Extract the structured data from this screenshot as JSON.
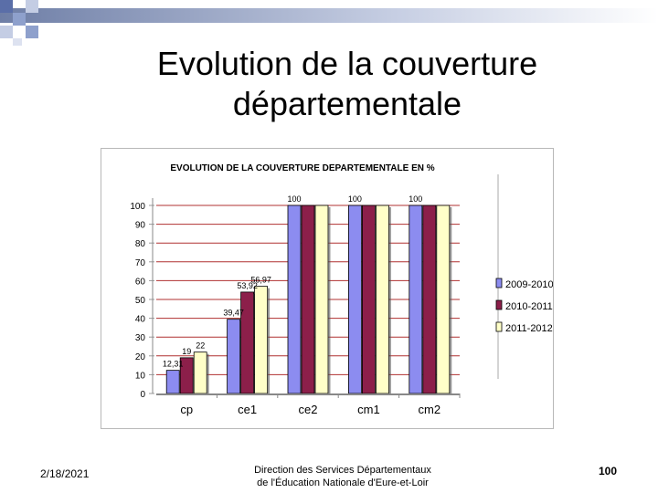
{
  "slide": {
    "title": "Evolution de la couverture départementale",
    "date": "2/18/2021",
    "organization_line1": "Direction des Services Départementaux",
    "organization_line2": "de l'Éducation Nationale d'Eure-et-Loir",
    "page_number": "100"
  },
  "chart_data": {
    "type": "bar",
    "title": "EVOLUTION DE LA COUVERTURE DEPARTEMENTALE EN %",
    "categories": [
      "cp",
      "ce1",
      "ce2",
      "cm1",
      "cm2"
    ],
    "series": [
      {
        "name": "2009-2010",
        "values": [
          12.31,
          39.47,
          100,
          100,
          100
        ],
        "labels": [
          "12,31",
          "39,47",
          "100",
          "100",
          "100"
        ],
        "color": "#8c8cf0"
      },
      {
        "name": "2010-2011",
        "values": [
          19,
          53.92,
          100,
          100,
          100
        ],
        "labels": [
          "19",
          "53,92",
          "",
          "",
          ""
        ],
        "color": "#8c1f4a"
      },
      {
        "name": "2011-2012",
        "values": [
          22,
          56.97,
          100,
          100,
          100
        ],
        "labels": [
          "22",
          "56,97",
          "",
          "",
          ""
        ],
        "color": "#ffffc8"
      }
    ],
    "yticks": [
      "0",
      "10",
      "20",
      "30",
      "40",
      "50",
      "60",
      "70",
      "80",
      "90",
      "100"
    ],
    "ylim": [
      0,
      100
    ],
    "grid": true,
    "legend": "right",
    "gridline_color": "#b03030"
  }
}
